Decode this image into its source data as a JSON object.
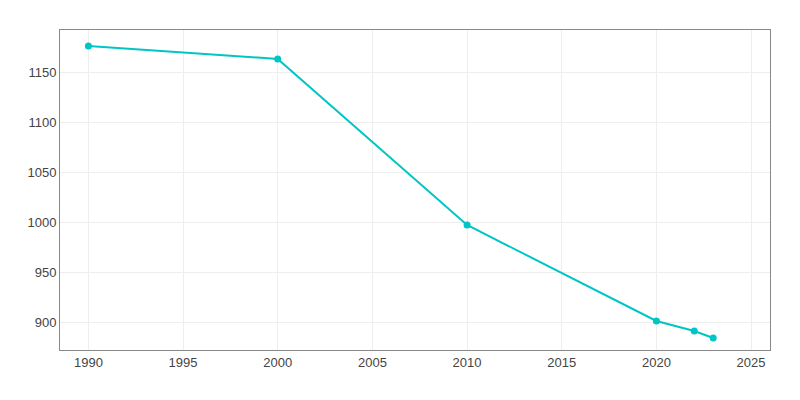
{
  "chart_data": {
    "type": "line",
    "x": [
      1990,
      2000,
      2010,
      2020,
      2022,
      2023
    ],
    "values": [
      1176,
      1163,
      997,
      901,
      891,
      884
    ],
    "color": "#00C5C5",
    "marker": "circle",
    "line_style": "solid",
    "xlim": [
      1988.5,
      2026
    ],
    "ylim": [
      872,
      1192
    ],
    "xticks": [
      1990,
      1995,
      2000,
      2005,
      2010,
      2015,
      2020,
      2025
    ],
    "yticks": [
      900,
      950,
      1000,
      1050,
      1100,
      1150
    ],
    "grid": true
  }
}
